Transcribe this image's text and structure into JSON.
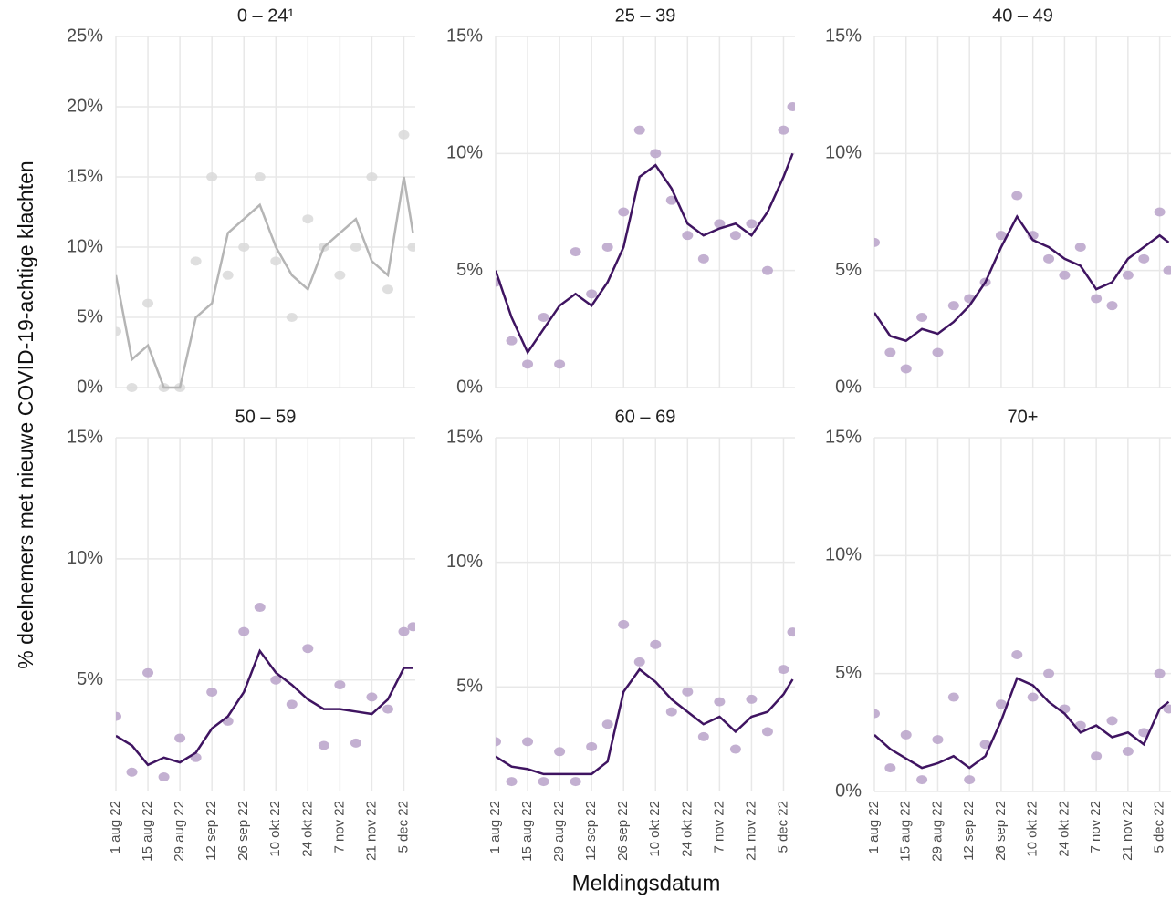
{
  "figure": {
    "ylabel": "% deelnemers met nieuwe COVID-19-achtige klachten",
    "xlabel": "Meldingsdatum"
  },
  "chart_data": [
    {
      "type": "line",
      "title": "0 – 24¹",
      "line_color": "#b5b5b5",
      "point_color": "#d9d9d9",
      "x": [
        "2022-08-01",
        "2022-08-08",
        "2022-08-15",
        "2022-08-22",
        "2022-08-29",
        "2022-09-05",
        "2022-09-12",
        "2022-09-19",
        "2022-09-26",
        "2022-10-03",
        "2022-10-10",
        "2022-10-17",
        "2022-10-24",
        "2022-10-31",
        "2022-11-07",
        "2022-11-14",
        "2022-11-21",
        "2022-11-28",
        "2022-12-05",
        "2022-12-09"
      ],
      "line": [
        8,
        2,
        3,
        0,
        0,
        5,
        6,
        11,
        12,
        13,
        10,
        8,
        7,
        10,
        11,
        12,
        9,
        8,
        15,
        11
      ],
      "points": [
        4,
        0,
        6,
        0,
        0,
        9,
        15,
        8,
        10,
        15,
        9,
        5,
        12,
        10,
        8,
        10,
        15,
        7,
        18,
        10
      ],
      "xlim": [
        "2022-08-01",
        "2022-12-10"
      ],
      "xticks": [
        "2022-08-01",
        "2022-08-15",
        "2022-08-29",
        "2022-09-12",
        "2022-09-26",
        "2022-10-10",
        "2022-10-24",
        "2022-11-07",
        "2022-11-21",
        "2022-12-05"
      ],
      "ylim": [
        0,
        25
      ],
      "yticks": [
        {
          "value": 0,
          "label": "0%"
        },
        {
          "value": 5,
          "label": "5%"
        },
        {
          "value": 10,
          "label": "10%"
        },
        {
          "value": 15,
          "label": "15%"
        },
        {
          "value": 20,
          "label": "20%"
        },
        {
          "value": 25,
          "label": "25%"
        }
      ]
    },
    {
      "type": "line",
      "title": "25 – 39",
      "line_color": "#3f1461",
      "point_color": "#b9a2c9",
      "x": [
        "2022-08-01",
        "2022-08-08",
        "2022-08-15",
        "2022-08-22",
        "2022-08-29",
        "2022-09-05",
        "2022-09-12",
        "2022-09-19",
        "2022-09-26",
        "2022-10-03",
        "2022-10-10",
        "2022-10-17",
        "2022-10-24",
        "2022-10-31",
        "2022-11-07",
        "2022-11-14",
        "2022-11-21",
        "2022-11-28",
        "2022-12-05",
        "2022-12-09"
      ],
      "line": [
        5,
        3,
        1.5,
        2.5,
        3.5,
        4,
        3.5,
        4.5,
        6,
        9,
        9.5,
        8.5,
        7,
        6.5,
        6.8,
        7,
        6.5,
        7.5,
        9,
        10
      ],
      "points": [
        4.5,
        2,
        1,
        3,
        1,
        5.8,
        4,
        6,
        7.5,
        11,
        10,
        8,
        6.5,
        5.5,
        7,
        6.5,
        7,
        5,
        11,
        12
      ],
      "xlim": [
        "2022-08-01",
        "2022-12-10"
      ],
      "xticks": [
        "2022-08-01",
        "2022-08-15",
        "2022-08-29",
        "2022-09-12",
        "2022-09-26",
        "2022-10-10",
        "2022-10-24",
        "2022-11-07",
        "2022-11-21",
        "2022-12-05"
      ],
      "ylim": [
        0,
        15
      ],
      "yticks": [
        {
          "value": 0,
          "label": "0%"
        },
        {
          "value": 5,
          "label": "5%"
        },
        {
          "value": 10,
          "label": "10%"
        },
        {
          "value": 15,
          "label": "15%"
        }
      ]
    },
    {
      "type": "line",
      "title": "40 – 49",
      "line_color": "#3f1461",
      "point_color": "#b9a2c9",
      "x": [
        "2022-08-01",
        "2022-08-08",
        "2022-08-15",
        "2022-08-22",
        "2022-08-29",
        "2022-09-05",
        "2022-09-12",
        "2022-09-19",
        "2022-09-26",
        "2022-10-03",
        "2022-10-10",
        "2022-10-17",
        "2022-10-24",
        "2022-10-31",
        "2022-11-07",
        "2022-11-14",
        "2022-11-21",
        "2022-11-28",
        "2022-12-05",
        "2022-12-09"
      ],
      "line": [
        3.2,
        2.2,
        2,
        2.5,
        2.3,
        2.8,
        3.5,
        4.5,
        6,
        7.3,
        6.3,
        6,
        5.5,
        5.2,
        4.2,
        4.5,
        5.5,
        6,
        6.5,
        6.2
      ],
      "points": [
        6.2,
        1.5,
        0.8,
        3,
        1.5,
        3.5,
        3.8,
        4.5,
        6.5,
        8.2,
        6.5,
        5.5,
        4.8,
        6,
        3.8,
        3.5,
        4.8,
        5.5,
        7.5,
        5
      ],
      "xlim": [
        "2022-08-01",
        "2022-12-10"
      ],
      "xticks": [
        "2022-08-01",
        "2022-08-15",
        "2022-08-29",
        "2022-09-12",
        "2022-09-26",
        "2022-10-10",
        "2022-10-24",
        "2022-11-07",
        "2022-11-21",
        "2022-12-05"
      ],
      "ylim": [
        0,
        15
      ],
      "yticks": [
        {
          "value": 0,
          "label": "0%"
        },
        {
          "value": 5,
          "label": "5%"
        },
        {
          "value": 10,
          "label": "10%"
        },
        {
          "value": 15,
          "label": "15%"
        }
      ]
    },
    {
      "type": "line",
      "title": "50 – 59",
      "line_color": "#3f1461",
      "point_color": "#b9a2c9",
      "x": [
        "2022-08-01",
        "2022-08-08",
        "2022-08-15",
        "2022-08-22",
        "2022-08-29",
        "2022-09-05",
        "2022-09-12",
        "2022-09-19",
        "2022-09-26",
        "2022-10-03",
        "2022-10-10",
        "2022-10-17",
        "2022-10-24",
        "2022-10-31",
        "2022-11-07",
        "2022-11-14",
        "2022-11-21",
        "2022-11-28",
        "2022-12-05",
        "2022-12-09"
      ],
      "line": [
        2.7,
        2.3,
        1.5,
        1.8,
        1.6,
        2,
        3,
        3.5,
        4.5,
        6.2,
        5.3,
        4.8,
        4.2,
        3.8,
        3.8,
        3.7,
        3.6,
        4.2,
        5.5,
        5.5
      ],
      "points": [
        3.5,
        1.2,
        5.3,
        1,
        2.6,
        1.8,
        4.5,
        3.3,
        7,
        8,
        5,
        4,
        6.3,
        2.3,
        4.8,
        2.4,
        4.3,
        3.8,
        7,
        7.2
      ],
      "xlim": [
        "2022-08-01",
        "2022-12-10"
      ],
      "xticks": [
        {
          "value": "2022-08-01",
          "label": "1 aug 22"
        },
        {
          "value": "2022-08-15",
          "label": "15 aug 22"
        },
        {
          "value": "2022-08-29",
          "label": "29 aug 22"
        },
        {
          "value": "2022-09-12",
          "label": "12 sep 22"
        },
        {
          "value": "2022-09-26",
          "label": "26 sep 22"
        },
        {
          "value": "2022-10-10",
          "label": "10 okt 22"
        },
        {
          "value": "2022-10-24",
          "label": "24 okt 22"
        },
        {
          "value": "2022-11-07",
          "label": "7 nov 22"
        },
        {
          "value": "2022-11-21",
          "label": "21 nov 22"
        },
        {
          "value": "2022-12-05",
          "label": "5 dec 22"
        }
      ],
      "ylim": [
        0.4,
        15
      ],
      "yticks": [
        {
          "value": 5,
          "label": "5%"
        },
        {
          "value": 10,
          "label": "10%"
        },
        {
          "value": 15,
          "label": "15%"
        }
      ]
    },
    {
      "type": "line",
      "title": "60 – 69",
      "line_color": "#3f1461",
      "point_color": "#b9a2c9",
      "x": [
        "2022-08-01",
        "2022-08-08",
        "2022-08-15",
        "2022-08-22",
        "2022-08-29",
        "2022-09-05",
        "2022-09-12",
        "2022-09-19",
        "2022-09-26",
        "2022-10-03",
        "2022-10-10",
        "2022-10-17",
        "2022-10-24",
        "2022-10-31",
        "2022-11-07",
        "2022-11-14",
        "2022-11-21",
        "2022-11-28",
        "2022-12-05",
        "2022-12-09"
      ],
      "line": [
        2.2,
        1.8,
        1.7,
        1.5,
        1.5,
        1.5,
        1.5,
        2,
        4.8,
        5.7,
        5.2,
        4.5,
        4,
        3.5,
        3.8,
        3.2,
        3.8,
        4,
        4.7,
        5.3
      ],
      "points": [
        2.8,
        1.2,
        2.8,
        1.2,
        2.4,
        1.2,
        2.6,
        3.5,
        7.5,
        6,
        6.7,
        4,
        4.8,
        3,
        4.4,
        2.5,
        4.5,
        3.2,
        5.7,
        7.2
      ],
      "xlim": [
        "2022-08-01",
        "2022-12-10"
      ],
      "xticks": [
        {
          "value": "2022-08-01",
          "label": "1 aug 22"
        },
        {
          "value": "2022-08-15",
          "label": "15 aug 22"
        },
        {
          "value": "2022-08-29",
          "label": "29 aug 22"
        },
        {
          "value": "2022-09-12",
          "label": "12 sep 22"
        },
        {
          "value": "2022-09-26",
          "label": "26 sep 22"
        },
        {
          "value": "2022-10-10",
          "label": "10 okt 22"
        },
        {
          "value": "2022-10-24",
          "label": "24 okt 22"
        },
        {
          "value": "2022-11-07",
          "label": "7 nov 22"
        },
        {
          "value": "2022-11-21",
          "label": "21 nov 22"
        },
        {
          "value": "2022-12-05",
          "label": "5 dec 22"
        }
      ],
      "ylim": [
        0.8,
        15
      ],
      "yticks": [
        {
          "value": 5,
          "label": "5%"
        },
        {
          "value": 10,
          "label": "10%"
        },
        {
          "value": 15,
          "label": "15%"
        }
      ]
    },
    {
      "type": "line",
      "title": "70+",
      "line_color": "#3f1461",
      "point_color": "#b9a2c9",
      "x": [
        "2022-08-01",
        "2022-08-08",
        "2022-08-15",
        "2022-08-22",
        "2022-08-29",
        "2022-09-05",
        "2022-09-12",
        "2022-09-19",
        "2022-09-26",
        "2022-10-03",
        "2022-10-10",
        "2022-10-17",
        "2022-10-24",
        "2022-10-31",
        "2022-11-07",
        "2022-11-14",
        "2022-11-21",
        "2022-11-28",
        "2022-12-05",
        "2022-12-09"
      ],
      "line": [
        2.4,
        1.8,
        1.4,
        1,
        1.2,
        1.5,
        1,
        1.5,
        3,
        4.8,
        4.5,
        3.8,
        3.3,
        2.5,
        2.8,
        2.3,
        2.5,
        2,
        3.5,
        3.8
      ],
      "points": [
        3.3,
        1,
        2.4,
        0.5,
        2.2,
        4,
        0.5,
        2,
        3.7,
        5.8,
        4,
        5,
        3.5,
        2.8,
        1.5,
        3,
        1.7,
        2.5,
        5,
        3.5
      ],
      "xlim": [
        "2022-08-01",
        "2022-12-10"
      ],
      "xticks": [
        {
          "value": "2022-08-01",
          "label": "1 aug 22"
        },
        {
          "value": "2022-08-15",
          "label": "15 aug 22"
        },
        {
          "value": "2022-08-29",
          "label": "29 aug 22"
        },
        {
          "value": "2022-09-12",
          "label": "12 sep 22"
        },
        {
          "value": "2022-09-26",
          "label": "26 sep 22"
        },
        {
          "value": "2022-10-10",
          "label": "10 okt 22"
        },
        {
          "value": "2022-10-24",
          "label": "24 okt 22"
        },
        {
          "value": "2022-11-07",
          "label": "7 nov 22"
        },
        {
          "value": "2022-11-21",
          "label": "21 nov 22"
        },
        {
          "value": "2022-12-05",
          "label": "5 dec 22"
        }
      ],
      "ylim": [
        0,
        15
      ],
      "yticks": [
        {
          "value": 0,
          "label": "0%"
        },
        {
          "value": 5,
          "label": "5%"
        },
        {
          "value": 10,
          "label": "10%"
        },
        {
          "value": 15,
          "label": "15%"
        }
      ]
    }
  ]
}
